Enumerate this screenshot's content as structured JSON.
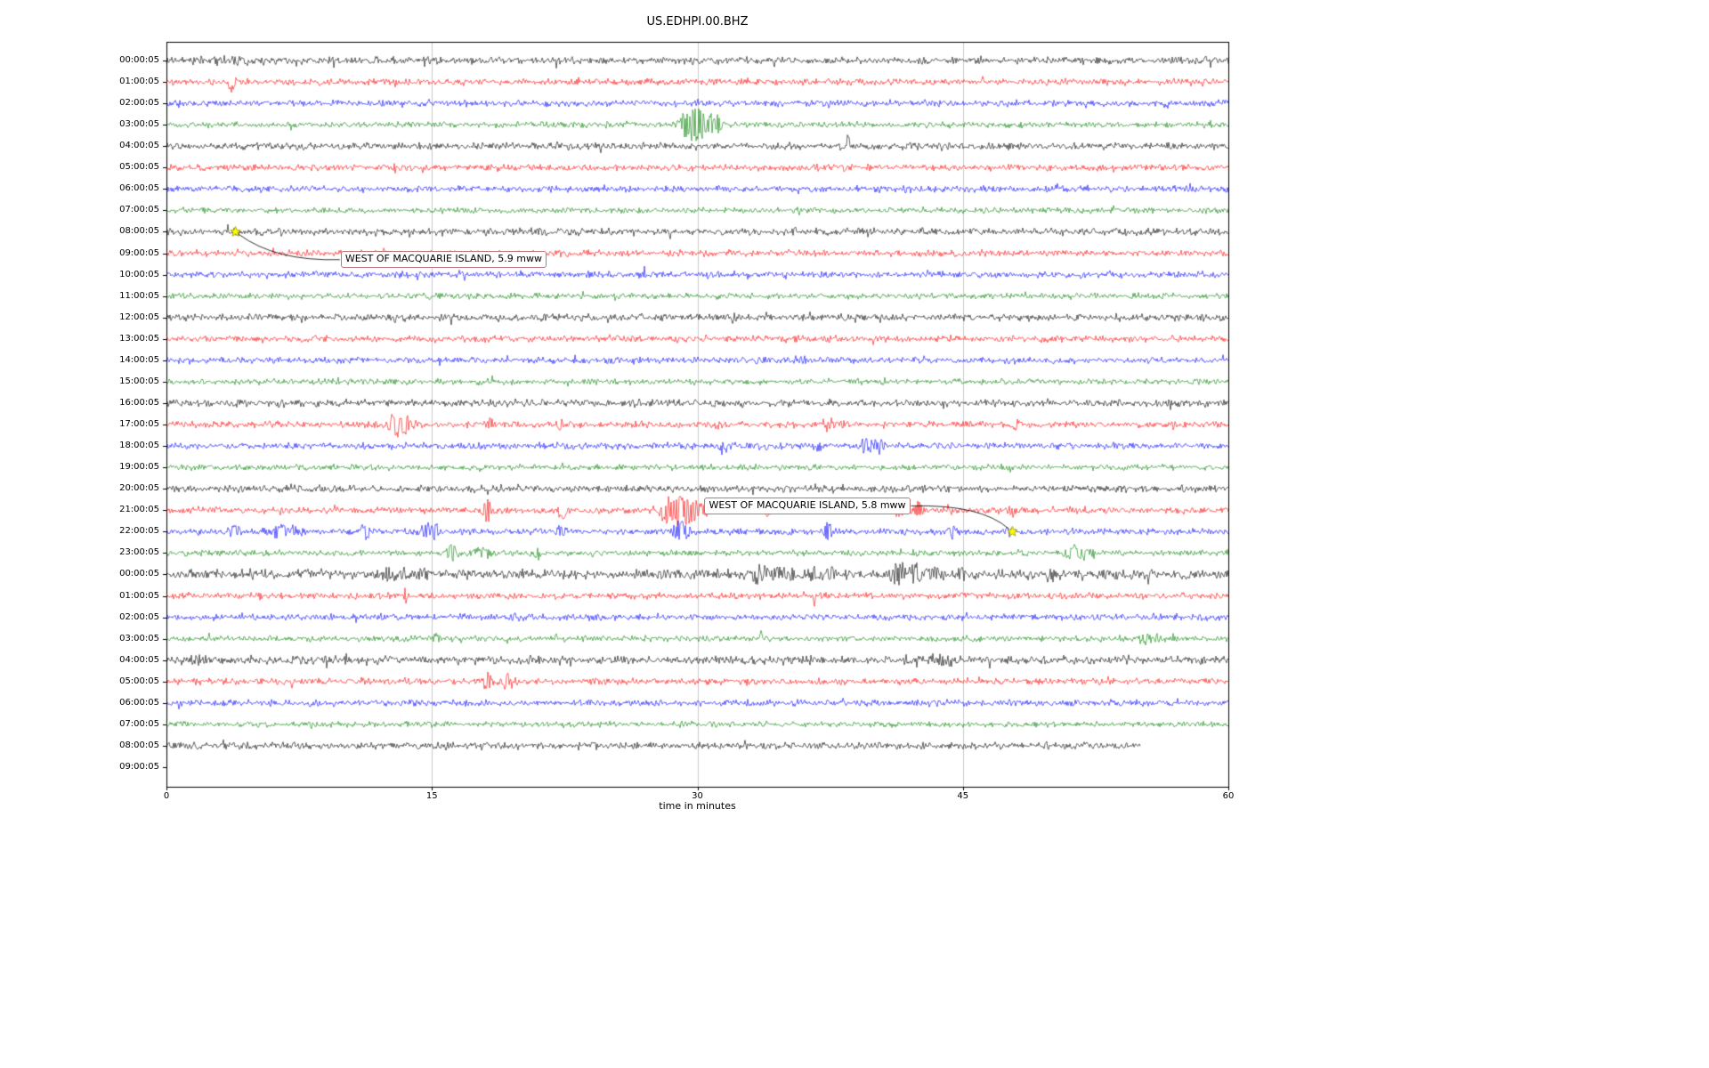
{
  "chart_data": {
    "type": "line",
    "variant": "seismogram-dayplot",
    "title": "US.EDHPI.00.BHZ",
    "xlabel": "time in minutes",
    "x_range": [
      0,
      60
    ],
    "x_ticks": [
      0,
      15,
      30,
      45,
      60
    ],
    "grid_minutes": [
      15,
      30,
      45
    ],
    "grid_color": "#cccccc",
    "trace_color_cycle": [
      "#000000",
      "#ff0000",
      "#0000ff",
      "#008000"
    ],
    "star_color": "#ffff00",
    "rows": [
      {
        "label": "00:00:05",
        "events": [
          [
            4.0,
            2.5,
            1.5
          ]
        ]
      },
      {
        "label": "01:00:05",
        "events": [
          [
            3.7,
            6,
            0.3
          ]
        ]
      },
      {
        "label": "02:00:05",
        "events": []
      },
      {
        "label": "03:00:05",
        "events": [
          [
            29.4,
            8,
            0.5
          ],
          [
            30.2,
            14,
            0.7
          ],
          [
            31.1,
            5,
            0.4
          ]
        ]
      },
      {
        "label": "04:00:05",
        "events": [
          [
            38.5,
            9,
            0.07
          ]
        ]
      },
      {
        "label": "05:00:05",
        "events": []
      },
      {
        "label": "06:00:05",
        "events": [
          [
            39.0,
            3,
            0.15
          ]
        ]
      },
      {
        "label": "07:00:05",
        "events": []
      },
      {
        "label": "08:00:05",
        "events": [
          [
            3.9,
            3,
            0.2
          ]
        ]
      },
      {
        "label": "09:00:05",
        "events": []
      },
      {
        "label": "10:00:05",
        "events": [
          [
            27.0,
            7,
            0.07
          ]
        ]
      },
      {
        "label": "11:00:05",
        "events": [
          [
            51.0,
            3,
            0.15
          ]
        ]
      },
      {
        "label": "12:00:05",
        "events": []
      },
      {
        "label": "13:00:05",
        "events": []
      },
      {
        "label": "14:00:05",
        "events": []
      },
      {
        "label": "15:00:05",
        "events": []
      },
      {
        "label": "16:00:05",
        "events": []
      },
      {
        "label": "17:00:05",
        "events": [
          [
            12.9,
            10,
            0.4
          ],
          [
            13.6,
            7,
            0.35
          ],
          [
            18.3,
            5,
            0.25
          ],
          [
            22.3,
            5,
            0.25
          ],
          [
            26.5,
            3,
            0.2
          ],
          [
            31.0,
            4,
            0.2
          ],
          [
            37.4,
            5,
            0.35
          ],
          [
            38.3,
            4,
            0.25
          ],
          [
            48.0,
            5,
            0.3
          ]
        ]
      },
      {
        "label": "18:00:05",
        "events": [
          [
            31.5,
            6,
            0.3
          ],
          [
            36.8,
            4,
            0.2
          ],
          [
            39.6,
            8,
            0.4
          ],
          [
            40.3,
            6,
            0.35
          ]
        ]
      },
      {
        "label": "19:00:05",
        "events": []
      },
      {
        "label": "20:00:05",
        "events": []
      },
      {
        "label": "21:00:05",
        "events": [
          [
            18.1,
            9,
            0.35
          ],
          [
            22.4,
            7,
            0.35
          ],
          [
            28.4,
            11,
            0.6
          ],
          [
            29.3,
            14,
            0.5
          ],
          [
            30.1,
            8,
            0.4
          ],
          [
            34.0,
            6,
            0.25
          ],
          [
            37.2,
            6,
            0.25
          ],
          [
            41.4,
            7,
            0.4
          ],
          [
            42.5,
            6,
            0.4
          ],
          [
            44.0,
            4,
            0.3
          ],
          [
            47.9,
            4,
            0.3
          ]
        ]
      },
      {
        "label": "22:00:05",
        "events": [
          [
            3.9,
            5,
            0.4
          ],
          [
            6.4,
            6,
            0.5
          ],
          [
            7.4,
            5,
            0.35
          ],
          [
            11.2,
            7,
            0.3
          ],
          [
            14.7,
            7,
            0.4
          ],
          [
            15.3,
            5,
            0.3
          ],
          [
            18.0,
            3,
            0.3
          ],
          [
            22.3,
            6,
            0.35
          ],
          [
            29.1,
            11,
            0.45
          ],
          [
            37.4,
            7,
            0.3
          ],
          [
            44.4,
            6,
            0.35
          ],
          [
            47.5,
            3,
            0.3
          ]
        ]
      },
      {
        "label": "23:00:05",
        "events": [
          [
            16.1,
            8,
            0.35
          ],
          [
            17.7,
            5,
            0.7
          ],
          [
            21.0,
            6,
            0.25
          ],
          [
            24.0,
            3,
            0.3
          ],
          [
            51.3,
            6,
            0.7
          ],
          [
            52.2,
            4,
            0.4
          ]
        ]
      },
      {
        "label": "00:00:05",
        "base": 2.4,
        "events": [
          [
            8.0,
            6,
            0.25
          ],
          [
            12.4,
            7,
            0.35
          ],
          [
            13.4,
            6,
            0.45
          ],
          [
            14.6,
            5,
            0.3
          ],
          [
            20.0,
            3,
            0.3
          ],
          [
            33.4,
            8,
            0.5
          ],
          [
            34.4,
            7,
            0.45
          ],
          [
            35.3,
            6,
            0.4
          ],
          [
            36.6,
            8,
            0.35
          ],
          [
            37.6,
            7,
            0.3
          ],
          [
            41.3,
            9,
            0.5
          ],
          [
            42.4,
            8,
            0.45
          ],
          [
            43.4,
            7,
            0.4
          ],
          [
            45.0,
            6,
            0.3
          ],
          [
            50.0,
            7,
            0.25
          ],
          [
            53.0,
            4,
            0.3
          ]
        ]
      },
      {
        "label": "01:00:05",
        "events": [
          [
            13.5,
            10,
            0.07
          ],
          [
            36.6,
            9,
            0.07
          ]
        ]
      },
      {
        "label": "02:00:05",
        "events": [
          [
            19.6,
            5,
            0.15
          ]
        ]
      },
      {
        "label": "03:00:05",
        "events": [
          [
            15.2,
            5,
            0.25
          ],
          [
            22.0,
            3,
            0.2
          ],
          [
            33.6,
            8,
            0.07
          ],
          [
            55.3,
            5,
            0.5
          ],
          [
            56.0,
            3,
            0.25
          ]
        ]
      },
      {
        "label": "04:00:05",
        "base": 2.2,
        "events": [
          [
            1.5,
            3,
            0.8
          ],
          [
            25.2,
            2.5,
            1.2
          ],
          [
            44.0,
            3.5,
            0.8
          ]
        ]
      },
      {
        "label": "05:00:05",
        "events": [
          [
            18.1,
            6,
            0.4
          ],
          [
            19.2,
            8,
            0.3
          ]
        ]
      },
      {
        "label": "06:00:05",
        "events": [
          [
            54.0,
            3,
            0.12
          ]
        ]
      },
      {
        "label": "07:00:05",
        "events": []
      },
      {
        "label": "08:00:05",
        "end": 55,
        "events": []
      },
      {
        "label": "09:00:05",
        "end": 0,
        "events": []
      }
    ],
    "annotations": [
      {
        "text": "WEST OF MACQUARIE ISLAND, 5.9 mww",
        "star": {
          "row": 8,
          "minute": 3.9
        },
        "box": {
          "minute": 9.85,
          "row": 9.3
        },
        "connect": "left"
      },
      {
        "text": "WEST OF MACQUARIE ISLAND, 5.8 mww",
        "star": {
          "row": 22,
          "minute": 47.8
        },
        "box": {
          "minute": 30.4,
          "row": 20.8
        },
        "connect": "right"
      }
    ]
  }
}
